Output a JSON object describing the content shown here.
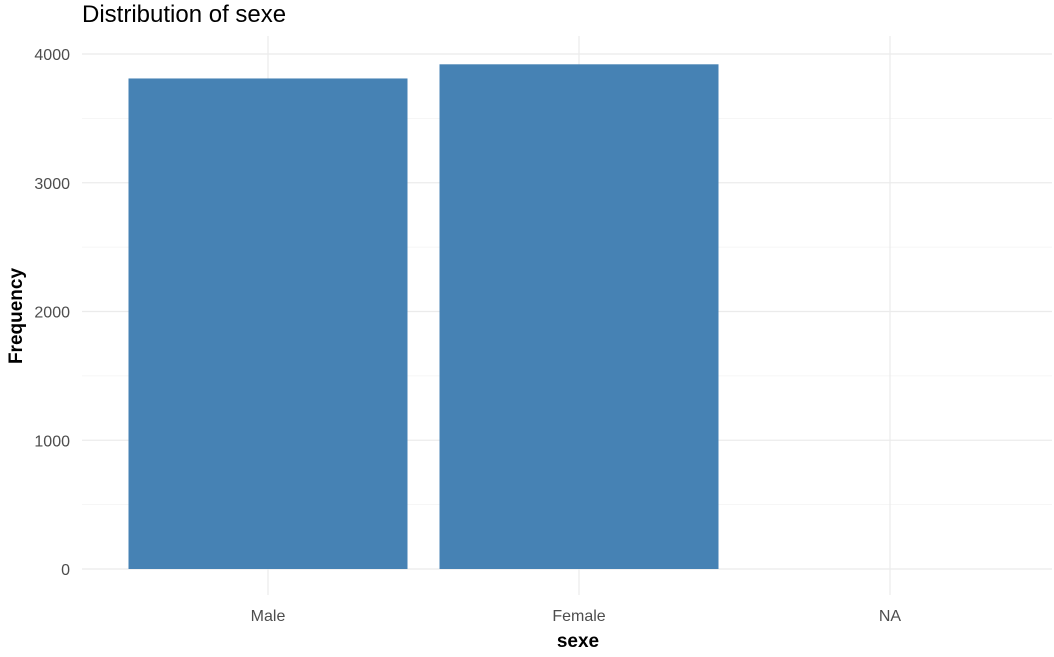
{
  "chart_data": {
    "type": "bar",
    "title": "Distribution of sexe",
    "xlabel": "sexe",
    "ylabel": "Frequency",
    "categories": [
      "Male",
      "Female",
      "NA"
    ],
    "values": [
      3810,
      3920,
      0
    ],
    "yticks": [
      0,
      1000,
      2000,
      3000,
      4000
    ],
    "ylim": [
      0,
      4100
    ],
    "grid": true,
    "bar_color": "#4682B4"
  }
}
